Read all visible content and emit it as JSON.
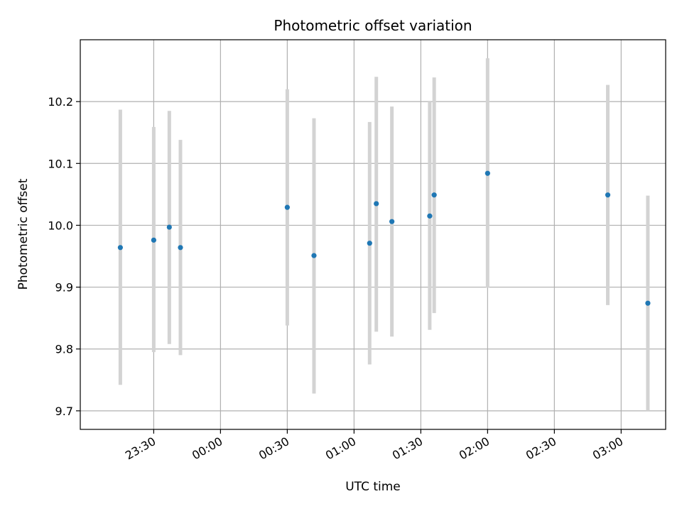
{
  "chart_data": {
    "type": "scatter",
    "title": "Photometric offset variation",
    "xlabel": "UTC time",
    "ylabel": "Photometric offset",
    "x_range_minutes": [
      -63,
      200
    ],
    "ylim": [
      9.67,
      10.3
    ],
    "grid": true,
    "x_ticks": [
      {
        "label": "23:30",
        "minutes": -30
      },
      {
        "label": "00:00",
        "minutes": 0
      },
      {
        "label": "00:30",
        "minutes": 30
      },
      {
        "label": "01:00",
        "minutes": 60
      },
      {
        "label": "01:30",
        "minutes": 90
      },
      {
        "label": "02:00",
        "minutes": 120
      },
      {
        "label": "02:30",
        "minutes": 150
      },
      {
        "label": "03:00",
        "minutes": 180
      }
    ],
    "y_ticks": [
      9.7,
      9.8,
      9.9,
      10.0,
      10.1,
      10.2
    ],
    "y_tick_labels": [
      "9.7",
      "9.8",
      "9.9",
      "10.0",
      "10.1",
      "10.2"
    ],
    "point_color": "#1f77b4",
    "errorbar_color": "#d3d3d3",
    "points": [
      {
        "time": "23:15",
        "minutes": -45,
        "y": 9.964,
        "ylow": 9.742,
        "yhigh": 10.187
      },
      {
        "time": "23:30",
        "minutes": -30,
        "y": 9.976,
        "ylow": 9.795,
        "yhigh": 10.159
      },
      {
        "time": "23:37",
        "minutes": -23,
        "y": 9.997,
        "ylow": 9.808,
        "yhigh": 10.185
      },
      {
        "time": "23:42",
        "minutes": -18,
        "y": 9.964,
        "ylow": 9.79,
        "yhigh": 10.138
      },
      {
        "time": "00:30",
        "minutes": 30,
        "y": 10.029,
        "ylow": 9.838,
        "yhigh": 10.22
      },
      {
        "time": "00:42",
        "minutes": 42,
        "y": 9.951,
        "ylow": 9.728,
        "yhigh": 10.173
      },
      {
        "time": "01:07",
        "minutes": 67,
        "y": 9.971,
        "ylow": 9.775,
        "yhigh": 10.167
      },
      {
        "time": "01:10",
        "minutes": 70,
        "y": 10.035,
        "ylow": 9.828,
        "yhigh": 10.24
      },
      {
        "time": "01:17",
        "minutes": 77,
        "y": 10.006,
        "ylow": 9.82,
        "yhigh": 10.192
      },
      {
        "time": "01:34",
        "minutes": 94,
        "y": 10.015,
        "ylow": 9.831,
        "yhigh": 10.2
      },
      {
        "time": "01:36",
        "minutes": 96,
        "y": 10.049,
        "ylow": 9.858,
        "yhigh": 10.239
      },
      {
        "time": "02:00",
        "minutes": 120,
        "y": 10.084,
        "ylow": 9.899,
        "yhigh": 10.27
      },
      {
        "time": "02:54",
        "minutes": 174,
        "y": 10.049,
        "ylow": 9.871,
        "yhigh": 10.227
      },
      {
        "time": "03:12",
        "minutes": 192,
        "y": 9.874,
        "ylow": 9.7,
        "yhigh": 10.048
      }
    ]
  }
}
